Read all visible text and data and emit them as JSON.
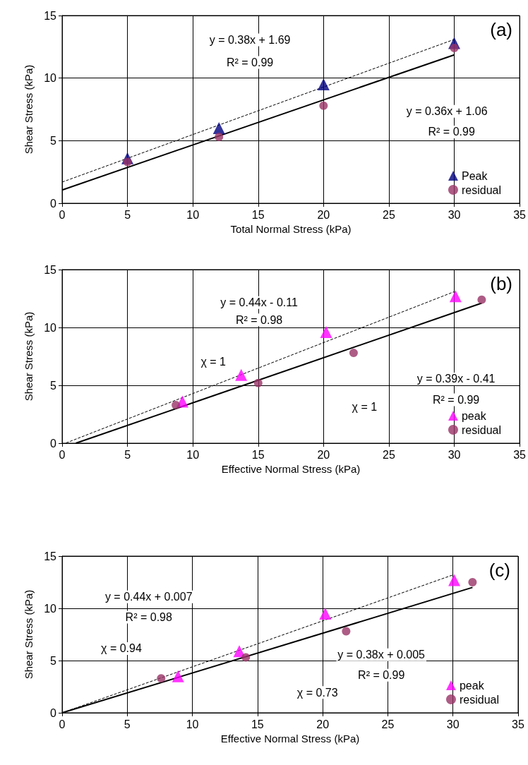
{
  "chart_data": [
    {
      "type": "scatter",
      "title": "(a)",
      "xlabel": "Total Normal Stress (kPa)",
      "ylabel": "Shear Stress (kPa)",
      "xlim": [
        0,
        35
      ],
      "xticks": [
        0,
        5,
        10,
        15,
        20,
        25,
        30,
        35
      ],
      "ylim": [
        0,
        15
      ],
      "yticks": [
        0,
        5,
        10,
        15
      ],
      "grid": true,
      "legend": "bottom right",
      "series": [
        {
          "name": "Peak",
          "color": "#000080",
          "marker": "triangle",
          "x": [
            5,
            12,
            20,
            30
          ],
          "values": [
            3.6,
            6.0,
            9.5,
            12.8
          ]
        },
        {
          "name": "residual",
          "color": "#993366",
          "marker": "circle",
          "x": [
            5,
            12,
            20,
            30
          ],
          "values": [
            3.3,
            5.3,
            7.8,
            12.4
          ]
        },
        {
          "type": "line",
          "color": "#000000",
          "line_style": "dashed",
          "marker": "none",
          "x": [
            0,
            30
          ],
          "values": [
            1.69,
            13.09
          ]
        },
        {
          "type": "line",
          "color": "#000000",
          "line_style": "solid",
          "marker": "none",
          "x": [
            0,
            30
          ],
          "values": [
            1.06,
            11.86
          ]
        }
      ],
      "annotations": [
        "y = 0.38x + 1.69",
        "R² = 0.99",
        "y = 0.36x + 1.06",
        "R² = 0.99"
      ]
    },
    {
      "type": "scatter",
      "title": "(b)",
      "xlabel": "Effective Normal Stress (kPa)",
      "ylabel": "Shear Stress (kPa)",
      "xlim": [
        0,
        35
      ],
      "xticks": [
        0,
        5,
        10,
        15,
        20,
        25,
        30,
        35
      ],
      "ylim": [
        0,
        15
      ],
      "yticks": [
        0,
        5,
        10,
        15
      ],
      "grid": true,
      "legend": "bottom right",
      "series": [
        {
          "name": "peak",
          "color": "#ff00ff",
          "marker": "triangle",
          "x": [
            9.2,
            13.7,
            20.2,
            30.1
          ],
          "values": [
            3.6,
            5.9,
            9.6,
            12.7
          ]
        },
        {
          "name": "residual",
          "color": "#993366",
          "marker": "circle",
          "x": [
            8.7,
            15.0,
            22.3,
            32.1
          ],
          "values": [
            3.3,
            5.2,
            7.8,
            12.4
          ]
        },
        {
          "type": "line",
          "color": "#000000",
          "line_style": "dashed",
          "marker": "none",
          "x": [
            0.3,
            30
          ],
          "values": [
            0.02,
            13.09
          ]
        },
        {
          "type": "line",
          "color": "#000000",
          "line_style": "solid",
          "marker": "none",
          "x": [
            1.05,
            32.1
          ],
          "values": [
            0,
            12.1
          ]
        }
      ],
      "annotations": [
        "y = 0.44x - 0.11",
        "R² = 0.98",
        "χ = 1",
        "y = 0.39x - 0.41",
        "R² = 0.99",
        "χ = 1"
      ]
    },
    {
      "type": "scatter",
      "title": "(c)",
      "xlabel": "Effective Normal Stress (kPa)",
      "ylabel": "Shear Stress (kPa)",
      "xlim": [
        0,
        35
      ],
      "xticks": [
        0,
        5,
        10,
        15,
        20,
        25,
        30,
        35
      ],
      "ylim": [
        0,
        15
      ],
      "yticks": [
        0,
        5,
        10,
        15
      ],
      "grid": true,
      "legend": "bottom right",
      "series": [
        {
          "name": "peak",
          "color": "#ff00ff",
          "marker": "triangle",
          "x": [
            8.9,
            13.6,
            20.2,
            30.1
          ],
          "values": [
            3.5,
            5.9,
            9.5,
            12.7
          ]
        },
        {
          "name": "residual",
          "color": "#993366",
          "marker": "circle",
          "x": [
            7.6,
            14.1,
            21.8,
            31.5
          ],
          "values": [
            3.3,
            5.3,
            7.8,
            12.5
          ]
        },
        {
          "type": "line",
          "color": "#000000",
          "line_style": "dashed",
          "marker": "none",
          "x": [
            0,
            30
          ],
          "values": [
            0,
            13.2
          ]
        },
        {
          "type": "line",
          "color": "#000000",
          "line_style": "solid",
          "marker": "none",
          "x": [
            0,
            31.5
          ],
          "values": [
            0,
            12.0
          ]
        }
      ],
      "annotations": [
        "y = 0.44x + 0.007",
        "R² = 0.98",
        "χ = 0.94",
        "y = 0.38x + 0.005",
        "R² = 0.99",
        "χ = 0.73"
      ]
    }
  ]
}
